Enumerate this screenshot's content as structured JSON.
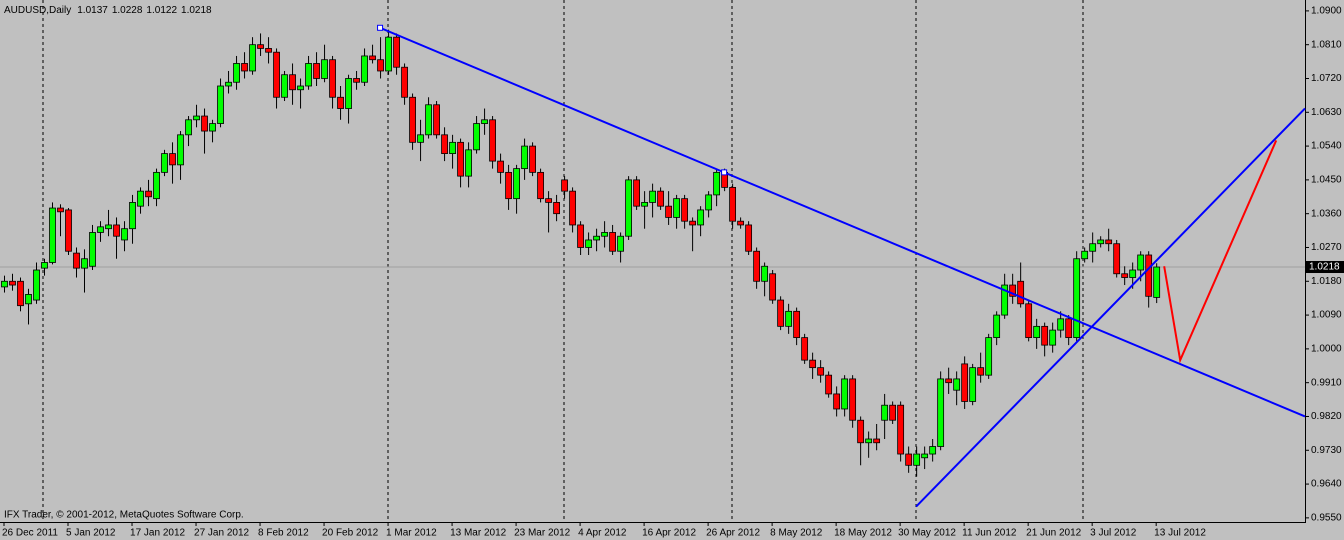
{
  "chart_data": {
    "type": "candlestick",
    "symbol": "AUDUSD,Daily",
    "footer": "IFX Trader, © 2001-2012, MetaQuotes Software Corp.",
    "up_color": "#00ff00",
    "down_color": "#ff0000",
    "xlim": [
      -0.5,
      162.6
    ],
    "ylim": [
      0.9539,
      1.0929
    ],
    "yticks": [
      {
        "value": 1.09,
        "label": "1.0900"
      },
      {
        "value": 1.081,
        "label": "1.0810"
      },
      {
        "value": 1.072,
        "label": "1.0720"
      },
      {
        "value": 1.063,
        "label": "1.0630"
      },
      {
        "value": 1.054,
        "label": "1.0540"
      },
      {
        "value": 1.045,
        "label": "1.0450"
      },
      {
        "value": 1.036,
        "label": "1.0360"
      },
      {
        "value": 1.027,
        "label": "1.0270"
      },
      {
        "value": 1.018,
        "label": "1.0180"
      },
      {
        "value": 1.009,
        "label": "1.0090"
      },
      {
        "value": 1.0,
        "label": "1.0000"
      },
      {
        "value": 0.991,
        "label": "0.9910"
      },
      {
        "value": 0.982,
        "label": "0.9820"
      },
      {
        "value": 0.973,
        "label": "0.9730"
      },
      {
        "value": 0.964,
        "label": "0.9640"
      },
      {
        "value": 0.955,
        "label": "0.9550"
      }
    ],
    "x_labels": [
      "26 Dec 2011",
      "5 Jan 2012",
      "17 Jan 2012",
      "27 Jan 2012",
      "8 Feb 2012",
      "20 Feb 2012",
      "1 Mar 2012",
      "13 Mar 2012",
      "23 Mar 2012",
      "4 Apr 2012",
      "16 Apr 2012",
      "26 Apr 2012",
      "8 May 2012",
      "18 May 2012",
      "30 May 2012",
      "11 Jun 2012",
      "21 Jun 2012",
      "3 Jul 2012",
      "13 Jul 2012"
    ],
    "candles": [
      [
        1.0165,
        1.0195,
        1.015,
        1.018
      ],
      [
        1.018,
        1.02,
        1.0155,
        1.017
      ],
      [
        1.018,
        1.019,
        1.01,
        1.0115
      ],
      [
        1.012,
        1.016,
        1.0065,
        1.0145
      ],
      [
        1.013,
        1.023,
        1.012,
        1.021
      ],
      [
        1.0215,
        1.024,
        1.0195,
        1.023
      ],
      [
        1.023,
        1.039,
        1.0225,
        1.0375
      ],
      [
        1.0375,
        1.0385,
        1.03,
        1.0365
      ],
      [
        1.037,
        1.0375,
        1.025,
        1.026
      ],
      [
        1.0255,
        1.027,
        1.019,
        1.0215
      ],
      [
        1.0215,
        1.0265,
        1.015,
        1.024
      ],
      [
        1.022,
        1.033,
        1.021,
        1.031
      ],
      [
        1.031,
        1.034,
        1.0285,
        1.0325
      ],
      [
        1.032,
        1.037,
        1.03,
        1.033
      ],
      [
        1.033,
        1.035,
        1.024,
        1.03
      ],
      [
        1.029,
        1.034,
        1.026,
        1.032
      ],
      [
        1.032,
        1.041,
        1.028,
        1.039
      ],
      [
        1.038,
        1.043,
        1.036,
        1.042
      ],
      [
        1.042,
        1.045,
        1.038,
        1.0405
      ],
      [
        1.04,
        1.048,
        1.038,
        1.047
      ],
      [
        1.047,
        1.053,
        1.046,
        1.052
      ],
      [
        1.052,
        1.055,
        1.044,
        1.049
      ],
      [
        1.049,
        1.058,
        1.045,
        1.057
      ],
      [
        1.057,
        1.062,
        1.054,
        1.061
      ],
      [
        1.061,
        1.065,
        1.059,
        1.062
      ],
      [
        1.062,
        1.064,
        1.052,
        1.058
      ],
      [
        1.058,
        1.061,
        1.055,
        1.06
      ],
      [
        1.06,
        1.072,
        1.059,
        1.07
      ],
      [
        1.07,
        1.074,
        1.068,
        1.071
      ],
      [
        1.071,
        1.078,
        1.069,
        1.076
      ],
      [
        1.076,
        1.079,
        1.072,
        1.074
      ],
      [
        1.074,
        1.083,
        1.073,
        1.081
      ],
      [
        1.081,
        1.084,
        1.078,
        1.08
      ],
      [
        1.08,
        1.083,
        1.076,
        1.079
      ],
      [
        1.079,
        1.08,
        1.064,
        1.067
      ],
      [
        1.067,
        1.074,
        1.066,
        1.073
      ],
      [
        1.073,
        1.076,
        1.065,
        1.069
      ],
      [
        1.069,
        1.072,
        1.064,
        1.07
      ],
      [
        1.07,
        1.078,
        1.069,
        1.076
      ],
      [
        1.076,
        1.079,
        1.07,
        1.072
      ],
      [
        1.072,
        1.081,
        1.071,
        1.077
      ],
      [
        1.077,
        1.078,
        1.064,
        1.067
      ],
      [
        1.067,
        1.07,
        1.061,
        1.064
      ],
      [
        1.064,
        1.073,
        1.06,
        1.072
      ],
      [
        1.072,
        1.074,
        1.069,
        1.071
      ],
      [
        1.071,
        1.08,
        1.07,
        1.078
      ],
      [
        1.078,
        1.081,
        1.076,
        1.077
      ],
      [
        1.077,
        1.083,
        1.072,
        1.074
      ],
      [
        1.074,
        1.085,
        1.073,
        1.083
      ],
      [
        1.083,
        1.084,
        1.073,
        1.075
      ],
      [
        1.075,
        1.076,
        1.065,
        1.067
      ],
      [
        1.067,
        1.068,
        1.053,
        1.055
      ],
      [
        1.055,
        1.061,
        1.05,
        1.057
      ],
      [
        1.057,
        1.067,
        1.056,
        1.065
      ],
      [
        1.065,
        1.066,
        1.056,
        1.057
      ],
      [
        1.057,
        1.059,
        1.05,
        1.052
      ],
      [
        1.052,
        1.057,
        1.048,
        1.055
      ],
      [
        1.055,
        1.056,
        1.043,
        1.046
      ],
      [
        1.046,
        1.055,
        1.043,
        1.053
      ],
      [
        1.053,
        1.062,
        1.052,
        1.06
      ],
      [
        1.06,
        1.064,
        1.057,
        1.061
      ],
      [
        1.061,
        1.062,
        1.048,
        1.05
      ],
      [
        1.05,
        1.052,
        1.044,
        1.047
      ],
      [
        1.047,
        1.049,
        1.037,
        1.04
      ],
      [
        1.04,
        1.049,
        1.036,
        1.048
      ],
      [
        1.048,
        1.056,
        1.045,
        1.054
      ],
      [
        1.054,
        1.055,
        1.046,
        1.047
      ],
      [
        1.047,
        1.048,
        1.039,
        1.04
      ],
      [
        1.04,
        1.042,
        1.031,
        1.039
      ],
      [
        1.039,
        1.041,
        1.034,
        1.036
      ],
      [
        1.045,
        1.046,
        1.04,
        1.042
      ],
      [
        1.042,
        1.043,
        1.031,
        1.033
      ],
      [
        1.033,
        1.034,
        1.025,
        1.027
      ],
      [
        1.027,
        1.031,
        1.025,
        1.029
      ],
      [
        1.029,
        1.032,
        1.026,
        1.03
      ],
      [
        1.03,
        1.034,
        1.027,
        1.031
      ],
      [
        1.031,
        1.033,
        1.025,
        1.026
      ],
      [
        1.026,
        1.031,
        1.023,
        1.03
      ],
      [
        1.03,
        1.046,
        1.029,
        1.045
      ],
      [
        1.045,
        1.046,
        1.037,
        1.038
      ],
      [
        1.038,
        1.042,
        1.032,
        1.039
      ],
      [
        1.039,
        1.044,
        1.035,
        1.042
      ],
      [
        1.042,
        1.043,
        1.037,
        1.038
      ],
      [
        1.038,
        1.042,
        1.033,
        1.035
      ],
      [
        1.035,
        1.041,
        1.032,
        1.04
      ],
      [
        1.04,
        1.041,
        1.032,
        1.034
      ],
      [
        1.034,
        1.035,
        1.026,
        1.033
      ],
      [
        1.033,
        1.038,
        1.03,
        1.037
      ],
      [
        1.037,
        1.042,
        1.035,
        1.041
      ],
      [
        1.041,
        1.048,
        1.038,
        1.047
      ],
      [
        1.047,
        1.048,
        1.042,
        1.043
      ],
      [
        1.043,
        1.044,
        1.032,
        1.034
      ],
      [
        1.034,
        1.035,
        1.032,
        1.033
      ],
      [
        1.033,
        1.034,
        1.025,
        1.026
      ],
      [
        1.026,
        1.027,
        1.016,
        1.018
      ],
      [
        1.018,
        1.023,
        1.014,
        1.022
      ],
      [
        1.02,
        1.021,
        1.012,
        1.013
      ],
      [
        1.013,
        1.014,
        1.005,
        1.006
      ],
      [
        1.006,
        1.012,
        1.004,
        1.01
      ],
      [
        1.01,
        1.011,
        1.001,
        1.003
      ],
      [
        1.003,
        1.004,
        0.996,
        0.997
      ],
      [
        0.997,
        0.999,
        0.992,
        0.995
      ],
      [
        0.995,
        0.997,
        0.991,
        0.993
      ],
      [
        0.993,
        0.994,
        0.987,
        0.988
      ],
      [
        0.988,
        0.99,
        0.982,
        0.984
      ],
      [
        0.984,
        0.993,
        0.982,
        0.992
      ],
      [
        0.992,
        0.993,
        0.979,
        0.981
      ],
      [
        0.981,
        0.982,
        0.969,
        0.975
      ],
      [
        0.975,
        0.978,
        0.971,
        0.976
      ],
      [
        0.976,
        0.98,
        0.973,
        0.975
      ],
      [
        0.981,
        0.988,
        0.976,
        0.985
      ],
      [
        0.985,
        0.986,
        0.98,
        0.981
      ],
      [
        0.985,
        0.986,
        0.97,
        0.972
      ],
      [
        0.972,
        0.974,
        0.967,
        0.969
      ],
      [
        0.969,
        0.974,
        0.966,
        0.972
      ],
      [
        0.971,
        0.974,
        0.968,
        0.972
      ],
      [
        0.972,
        0.976,
        0.97,
        0.974
      ],
      [
        0.974,
        0.994,
        0.973,
        0.992
      ],
      [
        0.992,
        0.995,
        0.988,
        0.991
      ],
      [
        0.989,
        0.994,
        0.985,
        0.992
      ],
      [
        0.996,
        0.998,
        0.984,
        0.986
      ],
      [
        0.986,
        0.996,
        0.985,
        0.995
      ],
      [
        0.995,
        0.999,
        0.991,
        0.993
      ],
      [
        0.993,
        1.004,
        0.992,
        1.003
      ],
      [
        1.003,
        1.01,
        1.001,
        1.009
      ],
      [
        1.009,
        1.02,
        1.008,
        1.017
      ],
      [
        1.017,
        1.02,
        1.012,
        1.014
      ],
      [
        1.018,
        1.023,
        1.011,
        1.012
      ],
      [
        1.012,
        1.013,
        1.002,
        1.003
      ],
      [
        1.003,
        1.008,
        1.0,
        1.006
      ],
      [
        1.006,
        1.007,
        0.998,
        1.001
      ],
      [
        1.001,
        1.007,
        0.999,
        1.005
      ],
      [
        1.005,
        1.01,
        1.003,
        1.008
      ],
      [
        1.008,
        1.009,
        1.001,
        1.003
      ],
      [
        1.003,
        1.026,
        1.002,
        1.024
      ],
      [
        1.024,
        1.027,
        1.023,
        1.026
      ],
      [
        1.026,
        1.031,
        1.023,
        1.028
      ],
      [
        1.028,
        1.03,
        1.027,
        1.029
      ],
      [
        1.029,
        1.032,
        1.026,
        1.028
      ],
      [
        1.028,
        1.029,
        1.019,
        1.02
      ],
      [
        1.02,
        1.022,
        1.017,
        1.019
      ],
      [
        1.019,
        1.023,
        1.016,
        1.021
      ],
      [
        1.021,
        1.026,
        1.018,
        1.025
      ],
      [
        1.025,
        1.026,
        1.011,
        1.014
      ],
      [
        1.0137,
        1.0228,
        1.0122,
        1.0218
      ]
    ],
    "trendlines": [
      {
        "x": [
          47,
          90
        ],
        "y": [
          1.0855,
          1.047
        ],
        "color": "#0000ff"
      },
      {
        "x": [
          114,
          158
        ],
        "y": [
          0.958,
          1.054
        ],
        "color": "#0000ff"
      }
    ],
    "drawings": [
      {
        "x": [
          145,
          147,
          159
        ],
        "y": [
          1.022,
          0.997,
          1.0555
        ],
        "color": "#ff0000"
      }
    ]
  }
}
